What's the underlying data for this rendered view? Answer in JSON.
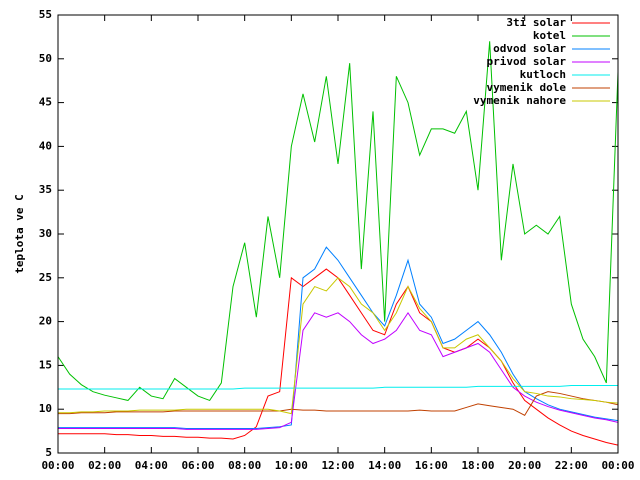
{
  "chart_data": {
    "type": "line",
    "y_label": "teplota ve C",
    "x": [
      0,
      0.5,
      1,
      1.5,
      2,
      2.5,
      3,
      3.5,
      4,
      4.5,
      5,
      5.5,
      6,
      6.5,
      7,
      7.5,
      8,
      8.5,
      9,
      9.5,
      10,
      10.5,
      11,
      11.5,
      12,
      12.5,
      13,
      13.5,
      14,
      14.5,
      15,
      15.5,
      16,
      16.5,
      17,
      17.5,
      18,
      18.5,
      19,
      19.5,
      20,
      20.5,
      21,
      21.5,
      22,
      22.5,
      23,
      23.5,
      24
    ],
    "xlim": [
      0,
      24
    ],
    "xticks": [
      {
        "value": 0,
        "label": "00:00"
      },
      {
        "value": 2,
        "label": "02:00"
      },
      {
        "value": 4,
        "label": "04:00"
      },
      {
        "value": 6,
        "label": "06:00"
      },
      {
        "value": 8,
        "label": "08:00"
      },
      {
        "value": 10,
        "label": "10:00"
      },
      {
        "value": 12,
        "label": "12:00"
      },
      {
        "value": 14,
        "label": "14:00"
      },
      {
        "value": 16,
        "label": "16:00"
      },
      {
        "value": 18,
        "label": "18:00"
      },
      {
        "value": 20,
        "label": "20:00"
      },
      {
        "value": 22,
        "label": "22:00"
      },
      {
        "value": 24,
        "label": "00:00"
      }
    ],
    "ylim": [
      5,
      55
    ],
    "yticks": [
      5,
      10,
      15,
      20,
      25,
      30,
      35,
      40,
      45,
      50,
      55
    ],
    "legend": "top-right",
    "series": [
      {
        "name": "3ti solar",
        "color": "#ff0000",
        "values": [
          7.2,
          7.2,
          7.2,
          7.2,
          7.2,
          7.1,
          7.1,
          7.0,
          7.0,
          6.9,
          6.9,
          6.8,
          6.8,
          6.7,
          6.7,
          6.6,
          7.0,
          8.0,
          11.5,
          12.0,
          25.0,
          24.0,
          25.0,
          26.0,
          25.0,
          23.0,
          21.0,
          19.0,
          18.5,
          22.0,
          24.0,
          21.0,
          20.0,
          17.0,
          16.5,
          17.0,
          18.0,
          17.0,
          15.5,
          13.0,
          11.0,
          10.0,
          9.0,
          8.2,
          7.5,
          7.0,
          6.6,
          6.2,
          5.9
        ]
      },
      {
        "name": "kotel",
        "color": "#00c000",
        "values": [
          16,
          14,
          12.8,
          12,
          11.6,
          11.3,
          11,
          12.5,
          11.5,
          11.2,
          13.5,
          12.5,
          11.5,
          11,
          13,
          24,
          29,
          20.5,
          32,
          25,
          40,
          46,
          40.5,
          48,
          38,
          49.5,
          26,
          44,
          20,
          48,
          45,
          39,
          42,
          42,
          41.5,
          44,
          35,
          52,
          27,
          38,
          30,
          31,
          30,
          32,
          22,
          18,
          16,
          13,
          48.5
        ]
      },
      {
        "name": "odvod solar",
        "color": "#0080ff",
        "values": [
          7.9,
          7.9,
          7.9,
          7.9,
          7.9,
          7.9,
          7.9,
          7.9,
          7.9,
          7.9,
          7.9,
          7.8,
          7.8,
          7.8,
          7.8,
          7.8,
          7.8,
          7.8,
          7.9,
          8.0,
          8.2,
          25,
          26,
          28.5,
          27,
          25,
          23,
          21,
          19.5,
          23,
          27,
          22,
          20.5,
          17.5,
          18,
          19,
          20,
          18.5,
          16.5,
          14,
          12,
          11.2,
          10.5,
          10,
          9.7,
          9.4,
          9.1,
          8.9,
          8.7
        ]
      },
      {
        "name": "privod solar",
        "color": "#c000ff",
        "values": [
          7.8,
          7.8,
          7.8,
          7.8,
          7.8,
          7.8,
          7.8,
          7.8,
          7.8,
          7.8,
          7.8,
          7.7,
          7.7,
          7.7,
          7.7,
          7.7,
          7.7,
          7.7,
          7.8,
          7.9,
          8.5,
          19,
          21,
          20.5,
          21,
          20,
          18.5,
          17.5,
          18,
          19,
          21,
          19,
          18.5,
          16,
          16.5,
          17,
          17.5,
          16.5,
          14.5,
          12.5,
          11.5,
          10.8,
          10.3,
          9.9,
          9.6,
          9.3,
          9,
          8.8,
          8.5
        ]
      },
      {
        "name": "kutloch",
        "color": "#00eeee",
        "values": [
          12.3,
          12.3,
          12.3,
          12.3,
          12.3,
          12.3,
          12.3,
          12.3,
          12.3,
          12.3,
          12.3,
          12.3,
          12.3,
          12.3,
          12.3,
          12.3,
          12.4,
          12.4,
          12.4,
          12.4,
          12.4,
          12.4,
          12.4,
          12.4,
          12.4,
          12.4,
          12.4,
          12.4,
          12.5,
          12.5,
          12.5,
          12.5,
          12.5,
          12.5,
          12.5,
          12.5,
          12.6,
          12.6,
          12.6,
          12.6,
          12.6,
          12.6,
          12.6,
          12.6,
          12.7,
          12.7,
          12.7,
          12.7,
          12.7
        ]
      },
      {
        "name": "vymenik dole",
        "color": "#c04000",
        "values": [
          9.5,
          9.5,
          9.6,
          9.6,
          9.6,
          9.7,
          9.7,
          9.7,
          9.7,
          9.7,
          9.8,
          9.8,
          9.8,
          9.8,
          9.8,
          9.8,
          9.8,
          9.8,
          9.8,
          9.8,
          10,
          9.9,
          9.9,
          9.8,
          9.8,
          9.8,
          9.8,
          9.8,
          9.8,
          9.8,
          9.8,
          9.9,
          9.8,
          9.8,
          9.8,
          10.2,
          10.6,
          10.4,
          10.2,
          10,
          9.3,
          11.5,
          12,
          11.8,
          11.5,
          11.2,
          11,
          10.8,
          10.5
        ]
      },
      {
        "name": "vymenik nahore",
        "color": "#c8c800",
        "values": [
          9.6,
          9.6,
          9.7,
          9.7,
          9.8,
          9.8,
          9.8,
          9.9,
          9.9,
          9.9,
          9.9,
          10,
          10,
          10,
          10,
          10,
          10,
          10,
          10,
          9.8,
          9.5,
          22,
          24,
          23.5,
          25,
          24,
          22,
          21,
          19,
          21,
          24,
          21.5,
          20,
          17,
          17,
          18,
          18.5,
          17,
          15.5,
          13.5,
          12,
          11.8,
          11.5,
          11.4,
          11.2,
          11.1,
          11,
          10.8,
          10.7
        ]
      }
    ]
  }
}
